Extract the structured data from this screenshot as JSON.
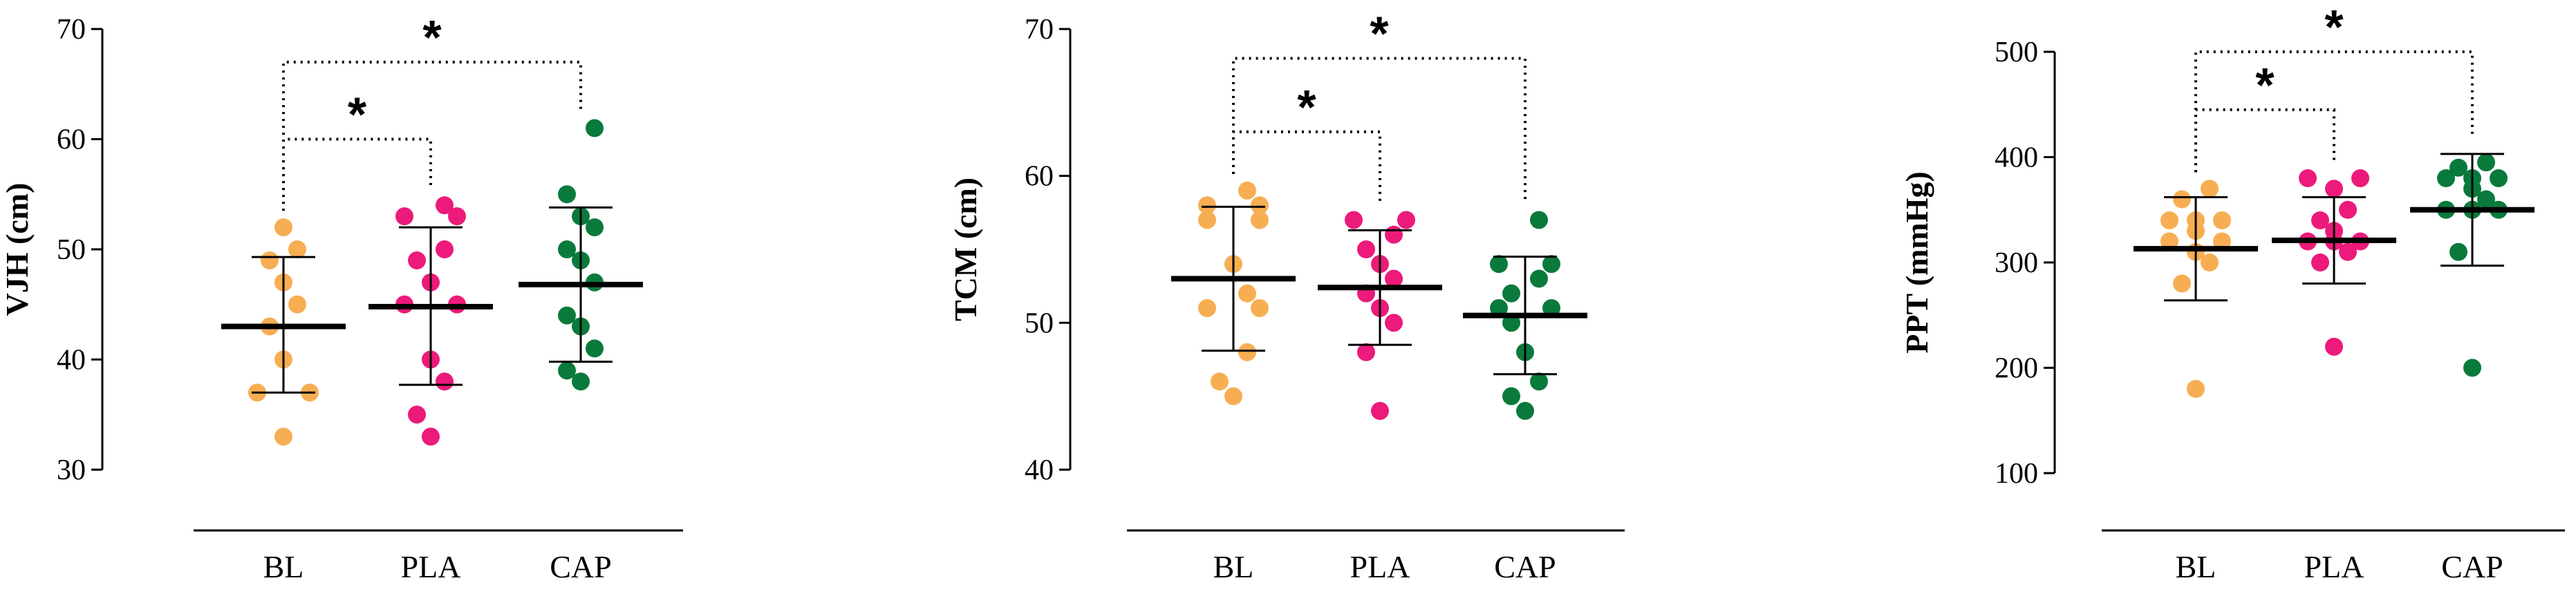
{
  "colors": {
    "BL": "#F7AE53",
    "PLA": "#EC1A7A",
    "CAP": "#0A7A3C"
  },
  "chart_data": [
    {
      "type": "scatter",
      "ylabel": "VJH (cm)",
      "ylim": [
        30,
        70
      ],
      "yticks": [
        30,
        40,
        50,
        60,
        70
      ],
      "categories": [
        "BL",
        "PLA",
        "CAP"
      ],
      "series": [
        {
          "category": "BL",
          "points": [
            33,
            37,
            37,
            40,
            43,
            45,
            47,
            49,
            50,
            52
          ],
          "mean": 43,
          "sd_low": 37,
          "sd_high": 49.3
        },
        {
          "category": "PLA",
          "points": [
            33,
            35,
            38,
            40,
            45,
            45,
            47,
            49,
            50,
            53,
            53,
            54
          ],
          "mean": 44.8,
          "sd_low": 37.7,
          "sd_high": 52
        },
        {
          "category": "CAP",
          "points": [
            38,
            39,
            41,
            43,
            44,
            47,
            49,
            50,
            52,
            53,
            55,
            61
          ],
          "mean": 46.8,
          "sd_low": 39.8,
          "sd_high": 53.8
        }
      ],
      "significance": [
        {
          "from": "BL",
          "to": "PLA",
          "label": "*",
          "level": 60
        },
        {
          "from": "BL",
          "to": "CAP",
          "label": "*",
          "level": 67
        }
      ]
    },
    {
      "type": "scatter",
      "ylabel": "TCM (cm)",
      "ylim": [
        40,
        70
      ],
      "yticks": [
        40,
        50,
        60,
        70
      ],
      "categories": [
        "BL",
        "PLA",
        "CAP"
      ],
      "series": [
        {
          "category": "BL",
          "points": [
            45,
            46,
            48,
            51,
            51,
            52,
            54,
            57,
            57,
            58,
            58,
            59
          ],
          "mean": 53,
          "sd_low": 48.1,
          "sd_high": 57.9
        },
        {
          "category": "PLA",
          "points": [
            44,
            48,
            50,
            51,
            52,
            53,
            54,
            55,
            56,
            57,
            57
          ],
          "mean": 52.4,
          "sd_low": 48.5,
          "sd_high": 56.3
        },
        {
          "category": "CAP",
          "points": [
            44,
            45,
            46,
            48,
            50,
            51,
            51,
            52,
            53,
            54,
            54,
            57
          ],
          "mean": 50.5,
          "sd_low": 46.5,
          "sd_high": 54.5
        }
      ],
      "significance": [
        {
          "from": "BL",
          "to": "PLA",
          "label": "*",
          "level": 63
        },
        {
          "from": "BL",
          "to": "CAP",
          "label": "*",
          "level": 68
        }
      ]
    },
    {
      "type": "scatter",
      "ylabel": "PPT (mmHg)",
      "ylim": [
        100,
        500
      ],
      "yticks": [
        100,
        200,
        300,
        400,
        500
      ],
      "categories": [
        "BL",
        "PLA",
        "CAP"
      ],
      "series": [
        {
          "category": "BL",
          "points": [
            180,
            280,
            300,
            310,
            320,
            320,
            330,
            340,
            340,
            340,
            360,
            370
          ],
          "mean": 313,
          "sd_low": 264,
          "sd_high": 362
        },
        {
          "category": "PLA",
          "points": [
            220,
            300,
            310,
            320,
            320,
            320,
            330,
            340,
            350,
            370,
            380,
            380
          ],
          "mean": 321,
          "sd_low": 280,
          "sd_high": 362
        },
        {
          "category": "CAP",
          "points": [
            200,
            310,
            350,
            350,
            350,
            360,
            370,
            380,
            380,
            380,
            390,
            395
          ],
          "mean": 350,
          "sd_low": 297,
          "sd_high": 403
        }
      ],
      "significance": [
        {
          "from": "BL",
          "to": "PLA",
          "label": "*",
          "level": 445
        },
        {
          "from": "BL",
          "to": "CAP",
          "label": "*",
          "level": 500
        }
      ]
    }
  ]
}
